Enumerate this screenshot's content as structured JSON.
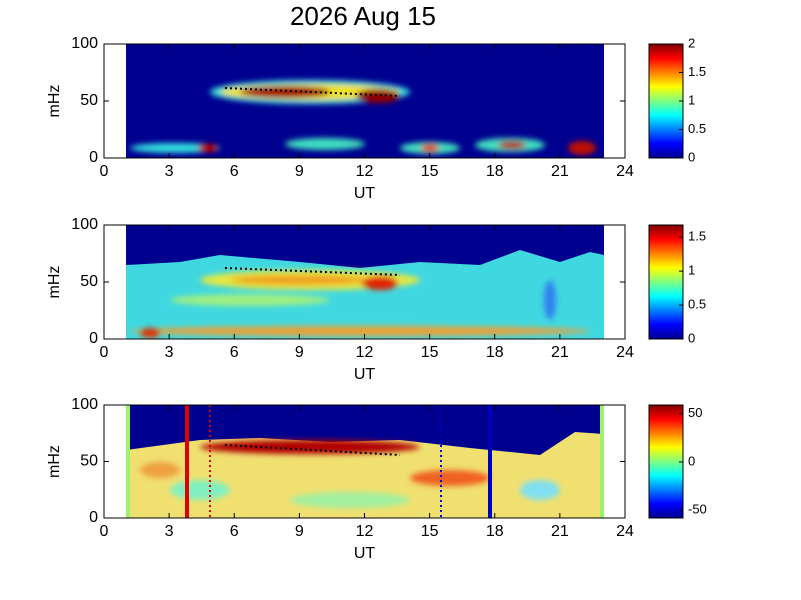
{
  "title": "2026 Aug 15",
  "chart_data": [
    {
      "type": "heatmap",
      "xlabel": "UT",
      "ylabel": "mHz",
      "xlim": [
        0,
        24
      ],
      "xticks": [
        0,
        3,
        6,
        9,
        12,
        15,
        18,
        21,
        24
      ],
      "ylim": [
        0,
        100
      ],
      "yticks": [
        0,
        50,
        100
      ],
      "clim": [
        0,
        2
      ],
      "cticks": [
        0,
        0.5,
        1,
        1.5,
        2
      ]
    },
    {
      "type": "heatmap",
      "xlabel": "UT",
      "ylabel": "mHz",
      "xlim": [
        0,
        24
      ],
      "xticks": [
        0,
        3,
        6,
        9,
        12,
        15,
        18,
        21,
        24
      ],
      "ylim": [
        0,
        100
      ],
      "yticks": [
        0,
        50,
        100
      ],
      "clim": [
        0,
        1.68
      ],
      "cticks": [
        0,
        0.5,
        1,
        1.5
      ]
    },
    {
      "type": "heatmap",
      "xlabel": "UT",
      "ylabel": "mHz",
      "xlim": [
        0,
        24
      ],
      "xticks": [
        0,
        3,
        6,
        9,
        12,
        15,
        18,
        21,
        24
      ],
      "ylim": [
        0,
        100
      ],
      "yticks": [
        0,
        50,
        100
      ],
      "clim": [
        -58,
        59
      ],
      "cticks": [
        -50,
        0,
        50
      ]
    }
  ]
}
